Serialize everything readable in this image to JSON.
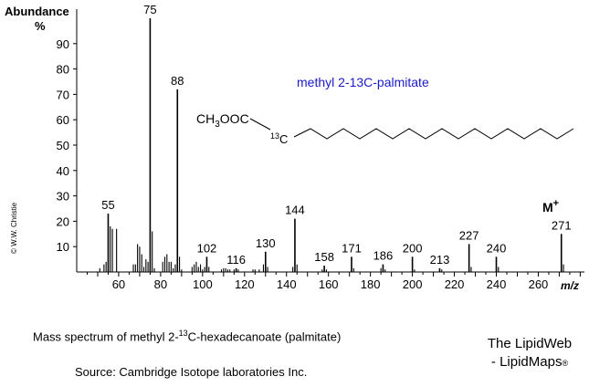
{
  "chart_data": {
    "type": "bar",
    "title": "methyl 2-13C-palmitate",
    "ylabel": "Abundance",
    "yunit": "%",
    "xlabel": "m/z",
    "xlim": [
      40,
      282
    ],
    "ylim": [
      0,
      100
    ],
    "xticks": [
      60,
      80,
      100,
      120,
      140,
      160,
      180,
      200,
      220,
      240,
      260
    ],
    "yticks": [
      10,
      20,
      30,
      40,
      50,
      60,
      70,
      80,
      90
    ],
    "molecular_ion_label": "M",
    "molecular_ion_sup": "+",
    "copyright": "© W.W. Christie",
    "structure": {
      "head": "CH",
      "head_sub": "3",
      "head_rest": "OOC",
      "isotope_sup": "13",
      "isotope_el": "C"
    },
    "peaks": [
      {
        "mz": 55,
        "abundance": 23,
        "label": "55"
      },
      {
        "mz": 75,
        "abundance": 100,
        "label": "75"
      },
      {
        "mz": 88,
        "abundance": 72,
        "label": "88"
      },
      {
        "mz": 102,
        "abundance": 6,
        "label": "102"
      },
      {
        "mz": 116,
        "abundance": 1.5,
        "label": "116"
      },
      {
        "mz": 130,
        "abundance": 8,
        "label": "130"
      },
      {
        "mz": 144,
        "abundance": 21,
        "label": "144"
      },
      {
        "mz": 158,
        "abundance": 2.5,
        "label": "158"
      },
      {
        "mz": 171,
        "abundance": 6,
        "label": "171"
      },
      {
        "mz": 186,
        "abundance": 3,
        "label": "186"
      },
      {
        "mz": 200,
        "abundance": 6,
        "label": "200"
      },
      {
        "mz": 213,
        "abundance": 1.5,
        "label": "213"
      },
      {
        "mz": 227,
        "abundance": 11,
        "label": "227"
      },
      {
        "mz": 240,
        "abundance": 6,
        "label": "240"
      },
      {
        "mz": 271,
        "abundance": 15,
        "label": "271"
      },
      {
        "mz": 51,
        "abundance": 1.5
      },
      {
        "mz": 53,
        "abundance": 3
      },
      {
        "mz": 54,
        "abundance": 4
      },
      {
        "mz": 56,
        "abundance": 18
      },
      {
        "mz": 57,
        "abundance": 17
      },
      {
        "mz": 59,
        "abundance": 17
      },
      {
        "mz": 67,
        "abundance": 3
      },
      {
        "mz": 68,
        "abundance": 3
      },
      {
        "mz": 69,
        "abundance": 11
      },
      {
        "mz": 70,
        "abundance": 10
      },
      {
        "mz": 71,
        "abundance": 7
      },
      {
        "mz": 72,
        "abundance": 2
      },
      {
        "mz": 73,
        "abundance": 5
      },
      {
        "mz": 74,
        "abundance": 4
      },
      {
        "mz": 76,
        "abundance": 16
      },
      {
        "mz": 77,
        "abundance": 1.5
      },
      {
        "mz": 81,
        "abundance": 4
      },
      {
        "mz": 82,
        "abundance": 6
      },
      {
        "mz": 83,
        "abundance": 7
      },
      {
        "mz": 84,
        "abundance": 4
      },
      {
        "mz": 85,
        "abundance": 4
      },
      {
        "mz": 86,
        "abundance": 1.5
      },
      {
        "mz": 87,
        "abundance": 3
      },
      {
        "mz": 89,
        "abundance": 6
      },
      {
        "mz": 90,
        "abundance": 1
      },
      {
        "mz": 95,
        "abundance": 2
      },
      {
        "mz": 96,
        "abundance": 3
      },
      {
        "mz": 97,
        "abundance": 4
      },
      {
        "mz": 98,
        "abundance": 2
      },
      {
        "mz": 99,
        "abundance": 3
      },
      {
        "mz": 100,
        "abundance": 1
      },
      {
        "mz": 101,
        "abundance": 2
      },
      {
        "mz": 103,
        "abundance": 2
      },
      {
        "mz": 109,
        "abundance": 1
      },
      {
        "mz": 110,
        "abundance": 1.5
      },
      {
        "mz": 111,
        "abundance": 1.5
      },
      {
        "mz": 112,
        "abundance": 1
      },
      {
        "mz": 113,
        "abundance": 1
      },
      {
        "mz": 115,
        "abundance": 1
      },
      {
        "mz": 117,
        "abundance": 1
      },
      {
        "mz": 124,
        "abundance": 1
      },
      {
        "mz": 125,
        "abundance": 1
      },
      {
        "mz": 127,
        "abundance": 1
      },
      {
        "mz": 129,
        "abundance": 3
      },
      {
        "mz": 131,
        "abundance": 2
      },
      {
        "mz": 143,
        "abundance": 2
      },
      {
        "mz": 145,
        "abundance": 3
      },
      {
        "mz": 157,
        "abundance": 1
      },
      {
        "mz": 159,
        "abundance": 1
      },
      {
        "mz": 172,
        "abundance": 1.5
      },
      {
        "mz": 185,
        "abundance": 1.5
      },
      {
        "mz": 187,
        "abundance": 1
      },
      {
        "mz": 201,
        "abundance": 1
      },
      {
        "mz": 214,
        "abundance": 1
      },
      {
        "mz": 228,
        "abundance": 2
      },
      {
        "mz": 241,
        "abundance": 2
      },
      {
        "mz": 272,
        "abundance": 3
      }
    ]
  },
  "caption": {
    "prefix": "Mass spectrum of methyl 2-",
    "isotope_sup": "13",
    "suffix": "C-hexadecanoate (palmitate)",
    "source": "Source:  Cambridge Isotope laboratories Inc."
  },
  "brand": {
    "line1": "The LipidWeb",
    "line2": "- LipidMaps",
    "mark": "®"
  },
  "colors": {
    "title": "#1a1acc",
    "ink": "#000000"
  }
}
